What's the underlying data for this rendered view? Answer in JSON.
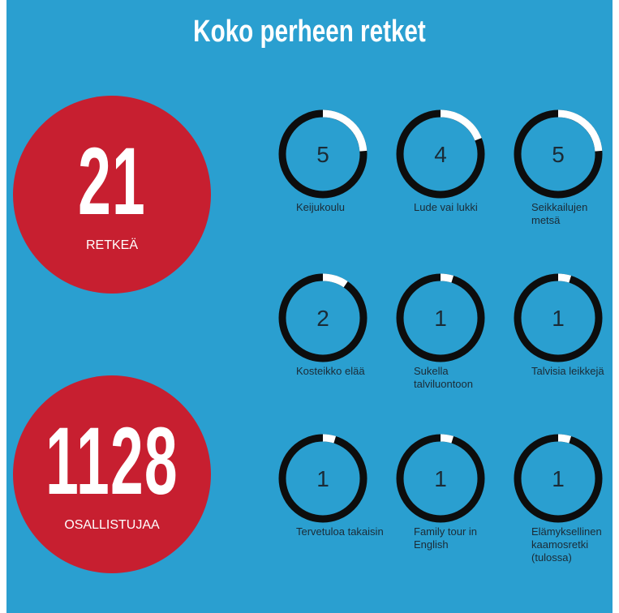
{
  "title": "Koko perheen retket",
  "stats": [
    {
      "value": 21,
      "label": "RETKEÄ"
    },
    {
      "value": 1128,
      "label": "OSALLISTUJAA"
    }
  ],
  "trips": [
    {
      "name": "Keijukoulu",
      "value": 5
    },
    {
      "name": "Lude vai lukki",
      "value": 4
    },
    {
      "name": "Seikkailujen metsä",
      "value": 5
    },
    {
      "name": "Kosteikko elää",
      "value": 2
    },
    {
      "name": "Sukella talviluontoon",
      "value": 1
    },
    {
      "name": "Talvisia leikkejä",
      "value": 1
    },
    {
      "name": "Tervetuloa takaisin",
      "value": 1
    },
    {
      "name": "Family tour in English",
      "value": 1
    },
    {
      "name": "Elämyksellinen kaamosretki (tulossa)",
      "value": 1
    }
  ]
}
